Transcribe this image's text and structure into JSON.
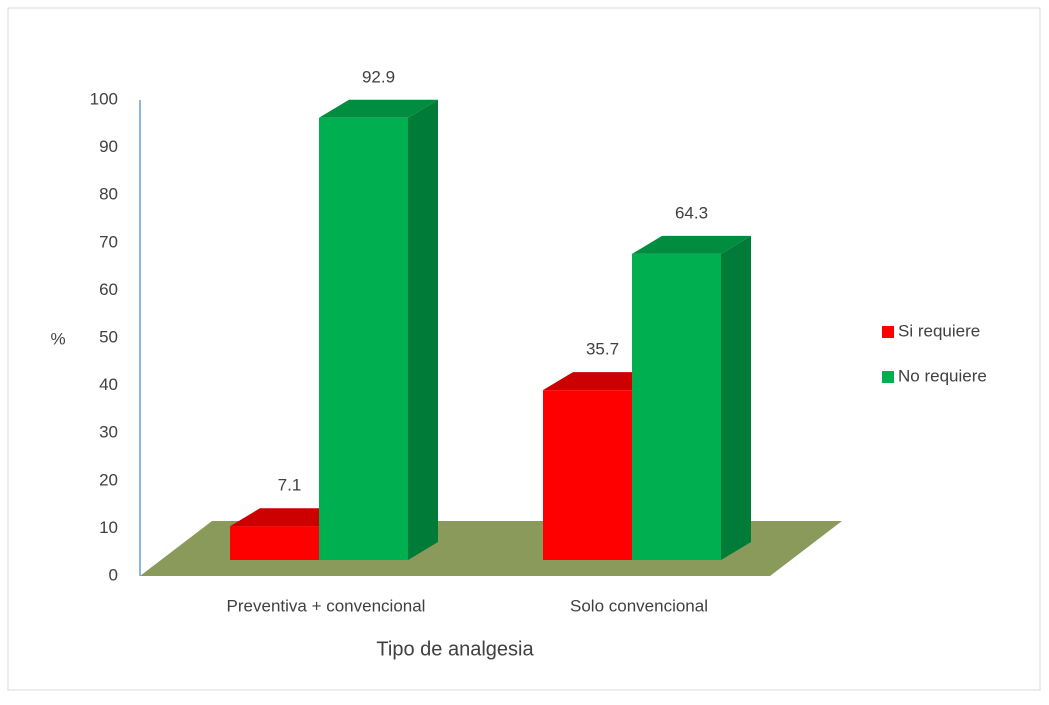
{
  "chart_data": {
    "type": "bar3d",
    "categories": [
      "Preventiva + convencional",
      "Solo convencional"
    ],
    "series": [
      {
        "name": "Si requiere",
        "color": "#ff0000",
        "values": [
          7.1,
          35.7
        ]
      },
      {
        "name": "No requiere",
        "color": "#00b050",
        "values": [
          92.9,
          64.3
        ]
      }
    ],
    "ylim": [
      0,
      100
    ],
    "yticks": [
      0,
      10,
      20,
      30,
      40,
      50,
      60,
      70,
      80,
      90,
      100
    ],
    "y_label": "%",
    "x_label": "Tipo de analgesia",
    "legend": "right"
  }
}
